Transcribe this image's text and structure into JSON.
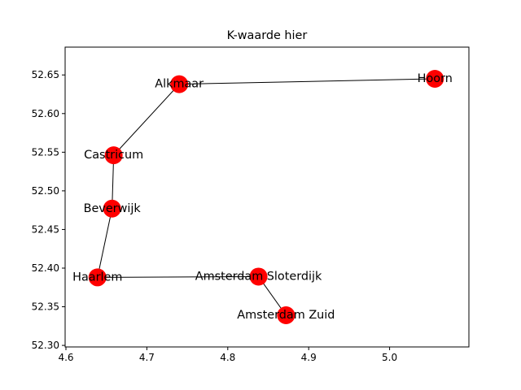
{
  "chart_data": {
    "type": "scatter",
    "title": "K-waarde hier",
    "xlabel": "",
    "ylabel": "",
    "xlim": [
      4.599,
      5.098
    ],
    "ylim": [
      52.298,
      52.686
    ],
    "xticks": [
      4.6,
      4.7,
      4.8,
      4.9,
      5.0
    ],
    "xtick_labels": [
      "4.6",
      "4.7",
      "4.8",
      "4.9",
      "5.0"
    ],
    "yticks": [
      52.3,
      52.35,
      52.4,
      52.45,
      52.5,
      52.55,
      52.6,
      52.65
    ],
    "ytick_labels": [
      "52.30",
      "52.35",
      "52.40",
      "52.45",
      "52.50",
      "52.55",
      "52.60",
      "52.65"
    ],
    "grid": false,
    "marker_color": "#ff0000",
    "edge_color": "#000000",
    "nodes": [
      {
        "name": "Hoorn",
        "x": 5.056,
        "y": 52.645
      },
      {
        "name": "Alkmaar",
        "x": 4.74,
        "y": 52.638
      },
      {
        "name": "Castricum",
        "x": 4.659,
        "y": 52.546
      },
      {
        "name": "Beverwijk",
        "x": 4.657,
        "y": 52.477
      },
      {
        "name": "Haarlem",
        "x": 4.639,
        "y": 52.388
      },
      {
        "name": "Amsterdam Sloterdijk",
        "x": 4.838,
        "y": 52.389
      },
      {
        "name": "Amsterdam Zuid",
        "x": 4.872,
        "y": 52.339
      }
    ],
    "edges": [
      [
        "Hoorn",
        "Alkmaar"
      ],
      [
        "Alkmaar",
        "Castricum"
      ],
      [
        "Castricum",
        "Beverwijk"
      ],
      [
        "Beverwijk",
        "Haarlem"
      ],
      [
        "Haarlem",
        "Amsterdam Sloterdijk"
      ],
      [
        "Amsterdam Sloterdijk",
        "Amsterdam Zuid"
      ]
    ]
  }
}
